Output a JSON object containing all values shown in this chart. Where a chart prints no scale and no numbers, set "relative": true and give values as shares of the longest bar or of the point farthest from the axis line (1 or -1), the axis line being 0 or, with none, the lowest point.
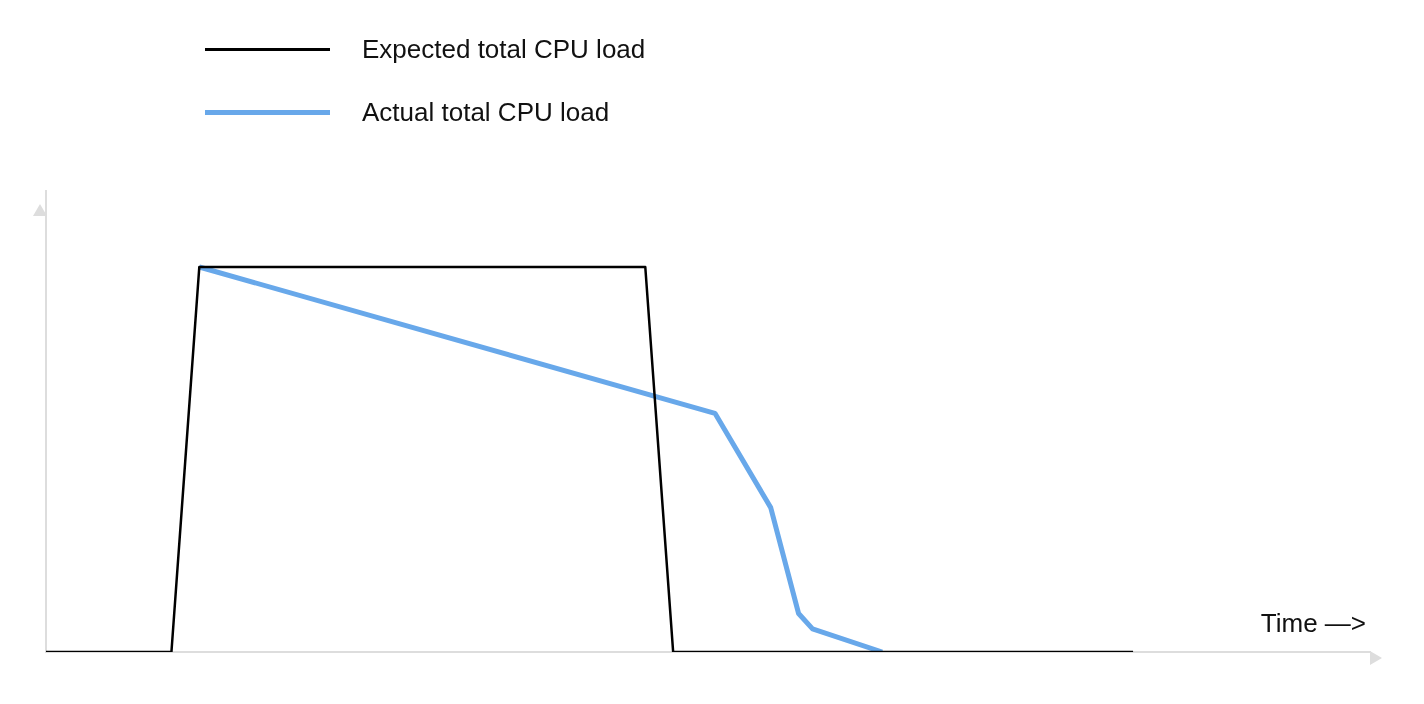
{
  "chart_data": {
    "type": "line",
    "relative": true,
    "xlabel": "Time —>",
    "legend": "top left",
    "categories": [
      null,
      null,
      null,
      null,
      null,
      null,
      null,
      null,
      null,
      null,
      null,
      null,
      null,
      null,
      null,
      null,
      null,
      null,
      null,
      null,
      null,
      null,
      null,
      null,
      null,
      null,
      null,
      null,
      null,
      null,
      null,
      null,
      null,
      null,
      null,
      null,
      null,
      null,
      null,
      null,
      null,
      null,
      null,
      null,
      null,
      null,
      null,
      null,
      null,
      null,
      null,
      null,
      null,
      null,
      null,
      null,
      null,
      null,
      null,
      null,
      null,
      null,
      null,
      null,
      null,
      null,
      null,
      null,
      null,
      null,
      null,
      null,
      null,
      null,
      null,
      null,
      null,
      null,
      null,
      null,
      null,
      null,
      null,
      null,
      null,
      null,
      null,
      null,
      null,
      null,
      null,
      null,
      null,
      null,
      null,
      null
    ],
    "series": [
      {
        "name": "Expected total CPU load",
        "color": "#000000",
        "values": [
          0,
          null,
          null,
          null,
          null,
          null,
          null,
          null,
          null,
          0,
          null,
          1,
          null,
          null,
          null,
          null,
          null,
          null,
          null,
          null,
          null,
          null,
          null,
          null,
          null,
          null,
          null,
          null,
          null,
          null,
          null,
          null,
          null,
          null,
          null,
          null,
          null,
          null,
          null,
          null,
          null,
          null,
          null,
          1,
          null,
          0,
          null,
          null,
          null,
          null,
          null,
          null,
          null,
          null,
          null,
          null,
          null,
          null,
          null,
          null,
          null,
          null,
          null,
          null,
          null,
          null,
          null,
          null,
          null,
          null,
          null,
          null,
          null,
          null,
          null,
          null,
          null,
          null,
          0,
          null,
          null,
          null,
          null,
          null,
          null,
          null,
          null,
          null,
          null,
          null,
          null,
          null,
          null,
          null,
          null,
          null
        ]
      },
      {
        "name": "Actual total CPU load",
        "color": "#68a8ea",
        "values": [
          null,
          null,
          null,
          null,
          null,
          null,
          null,
          null,
          null,
          null,
          null,
          1,
          null,
          null,
          null,
          null,
          null,
          null,
          null,
          null,
          null,
          null,
          null,
          null,
          null,
          null,
          null,
          null,
          null,
          null,
          null,
          null,
          null,
          null,
          null,
          null,
          null,
          null,
          null,
          null,
          null,
          null,
          null,
          null,
          null,
          null,
          null,
          null,
          0.62,
          null,
          null,
          null,
          0.375,
          null,
          0.1,
          0.06,
          null,
          null,
          null,
          null,
          0,
          null,
          null,
          null,
          null,
          null,
          null,
          null,
          null,
          null,
          null,
          null,
          null,
          null,
          null,
          null,
          null,
          null,
          null,
          null,
          null,
          null,
          null,
          null,
          null,
          null,
          null,
          null,
          null,
          null,
          null,
          null,
          null,
          null,
          null,
          null
        ]
      }
    ]
  }
}
